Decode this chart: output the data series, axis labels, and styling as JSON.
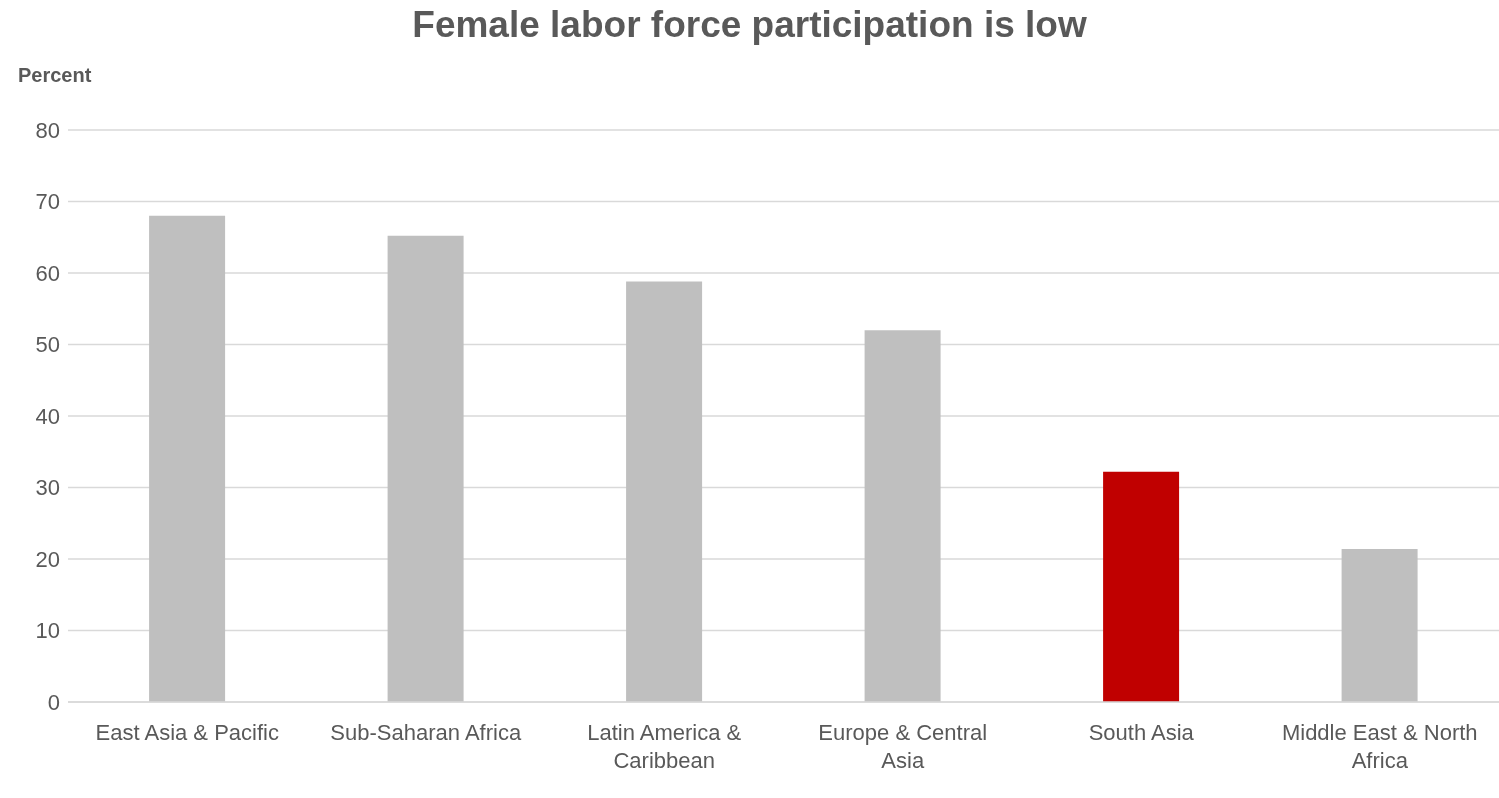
{
  "chart_data": {
    "type": "bar",
    "title": "Female labor force participation is low",
    "ylabel": "Percent",
    "categories": [
      "East Asia & Pacific",
      "Sub-Saharan Africa",
      "Latin America & Caribbean",
      "Europe & Central Asia",
      "South Asia",
      "Middle East & North Africa"
    ],
    "values": [
      68,
      65.2,
      58.8,
      52,
      32.2,
      21.4
    ],
    "colors": [
      "#bfbfbf",
      "#bfbfbf",
      "#bfbfbf",
      "#bfbfbf",
      "#c00000",
      "#bfbfbf"
    ],
    "ylim": [
      0,
      80
    ],
    "yticks": [
      0,
      10,
      20,
      30,
      40,
      50,
      60,
      70,
      80
    ],
    "grid": "y"
  }
}
